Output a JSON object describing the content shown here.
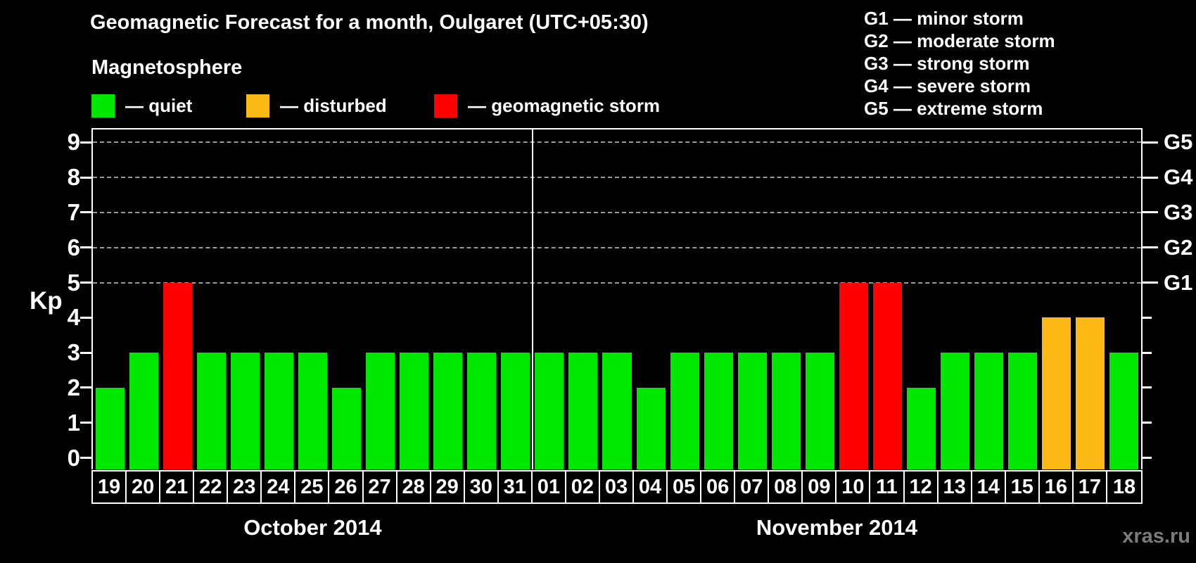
{
  "title": "Geomagnetic Forecast for a month, Oulgaret (UTC+05:30)",
  "watermark": "xras.ru",
  "legend": {
    "title": "Magnetosphere",
    "items": [
      {
        "key": "quiet",
        "label": "— quiet",
        "color": "#00E800"
      },
      {
        "key": "disturbed",
        "label": "— disturbed",
        "color": "#FCB814"
      },
      {
        "key": "storm",
        "label": "— geomagnetic storm",
        "color": "#FF0000"
      }
    ]
  },
  "g_scale_legend": [
    "G1 — minor storm",
    "G2 — moderate storm",
    "G3 — strong storm",
    "G4 — severe storm",
    "G5 — extreme storm"
  ],
  "chart_data": {
    "type": "bar",
    "title": "Geomagnetic Forecast for a month, Oulgaret (UTC+05:30)",
    "ylabel": "Kp",
    "ylim": [
      0,
      9
    ],
    "yticks": [
      0,
      1,
      2,
      3,
      4,
      5,
      6,
      7,
      8,
      9
    ],
    "gridlines_at": [
      5,
      6,
      7,
      8,
      9
    ],
    "grid": "dashed horizontal lines at storm levels G1-G5",
    "legend_position": "top-left",
    "right_axis_labels": [
      {
        "kp": 5,
        "label": "G1"
      },
      {
        "kp": 6,
        "label": "G2"
      },
      {
        "kp": 7,
        "label": "G3"
      },
      {
        "kp": 8,
        "label": "G4"
      },
      {
        "kp": 9,
        "label": "G5"
      }
    ],
    "months": [
      {
        "label": "October 2014",
        "days": 13
      },
      {
        "label": "November 2014",
        "days": 18
      }
    ],
    "categories": [
      "19",
      "20",
      "21",
      "22",
      "23",
      "24",
      "25",
      "26",
      "27",
      "28",
      "29",
      "30",
      "31",
      "01",
      "02",
      "03",
      "04",
      "05",
      "06",
      "07",
      "08",
      "09",
      "10",
      "11",
      "12",
      "13",
      "14",
      "15",
      "16",
      "17",
      "18"
    ],
    "values": [
      2,
      3,
      5,
      3,
      3,
      3,
      3,
      2,
      3,
      3,
      3,
      3,
      3,
      3,
      3,
      3,
      2,
      3,
      3,
      3,
      3,
      3,
      5,
      5,
      2,
      3,
      3,
      3,
      4,
      4,
      3
    ],
    "status": [
      "quiet",
      "quiet",
      "storm",
      "quiet",
      "quiet",
      "quiet",
      "quiet",
      "quiet",
      "quiet",
      "quiet",
      "quiet",
      "quiet",
      "quiet",
      "quiet",
      "quiet",
      "quiet",
      "quiet",
      "quiet",
      "quiet",
      "quiet",
      "quiet",
      "quiet",
      "storm",
      "storm",
      "quiet",
      "quiet",
      "quiet",
      "quiet",
      "disturbed",
      "disturbed",
      "quiet"
    ]
  }
}
